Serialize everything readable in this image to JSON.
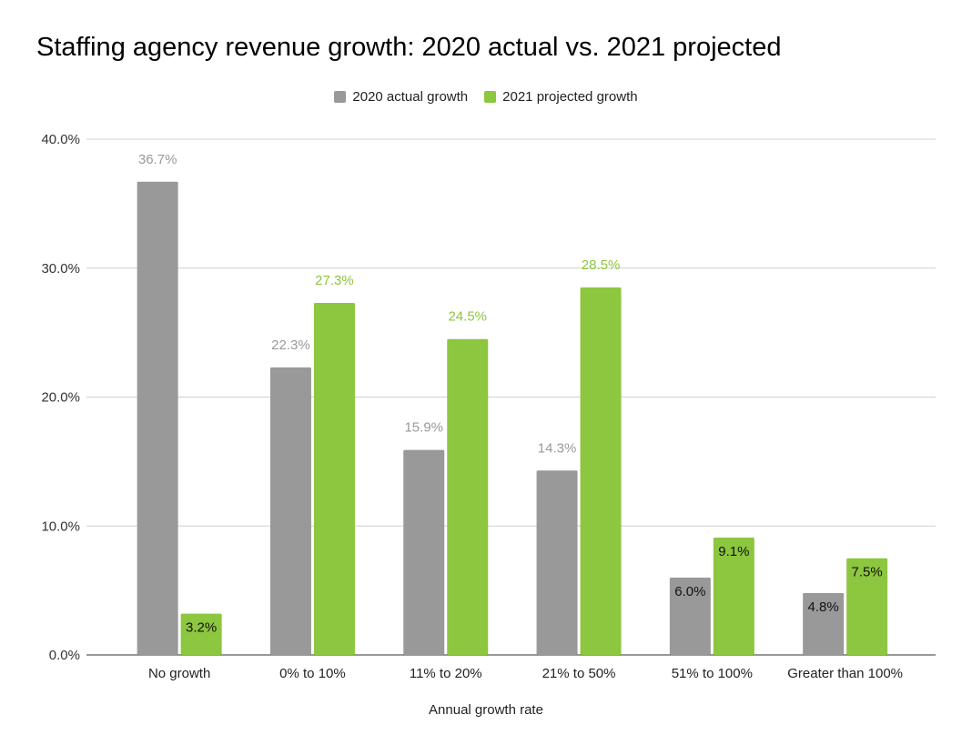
{
  "chart_data": {
    "type": "bar",
    "title": "Staffing agency revenue growth: 2020 actual vs. 2021 projected",
    "xlabel": "Annual growth rate",
    "ylabel": "",
    "ylim": [
      0,
      40
    ],
    "yticks": [
      "0.0%",
      "10.0%",
      "20.0%",
      "30.0%",
      "40.0%"
    ],
    "grid": true,
    "legend": "top",
    "categories": [
      "No growth",
      "0% to 10%",
      "11% to 20%",
      "21% to 50%",
      "51% to 100%",
      "Greater than 100%"
    ],
    "series": [
      {
        "name": "2020 actual growth",
        "color": "#999999",
        "values": [
          36.7,
          22.3,
          15.9,
          14.3,
          6.0,
          4.8
        ],
        "labels": [
          "36.7%",
          "22.3%",
          "15.9%",
          "14.3%",
          "6.0%",
          "4.8%"
        ]
      },
      {
        "name": "2021 projected growth",
        "color": "#8dc63f",
        "values": [
          3.2,
          27.3,
          24.5,
          28.5,
          9.1,
          7.5
        ],
        "labels": [
          "3.2%",
          "27.3%",
          "24.5%",
          "28.5%",
          "9.1%",
          "7.5%"
        ]
      }
    ]
  }
}
